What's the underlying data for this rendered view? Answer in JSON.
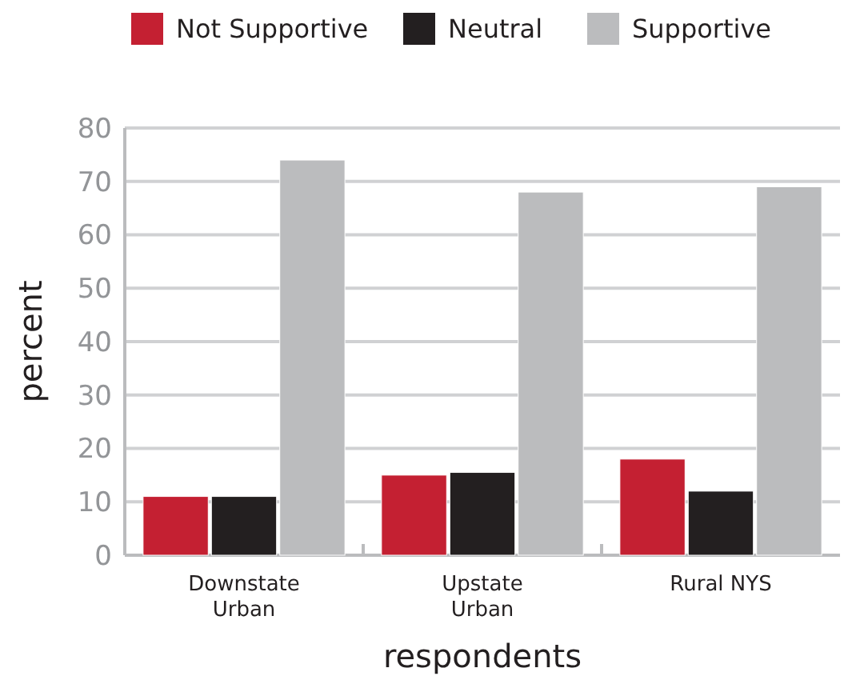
{
  "chart_data": {
    "type": "bar",
    "xlabel": "respondents",
    "ylabel": "percent",
    "categories": [
      "Downstate\nUrban",
      "Upstate\nUrban",
      "Rural NYS"
    ],
    "series": [
      {
        "name": "Not Supportive",
        "color": "#c42032",
        "values": [
          11,
          15,
          18
        ]
      },
      {
        "name": "Neutral",
        "color": "#231f20",
        "values": [
          11,
          15.5,
          12
        ]
      },
      {
        "name": "Supportive",
        "color": "#bbbcbe",
        "values": [
          74,
          68,
          69
        ]
      }
    ],
    "ylim": [
      0,
      80
    ],
    "yticks": [
      0,
      10,
      20,
      30,
      40,
      50,
      60,
      70,
      80
    ],
    "grid": "y",
    "legend": "top"
  }
}
